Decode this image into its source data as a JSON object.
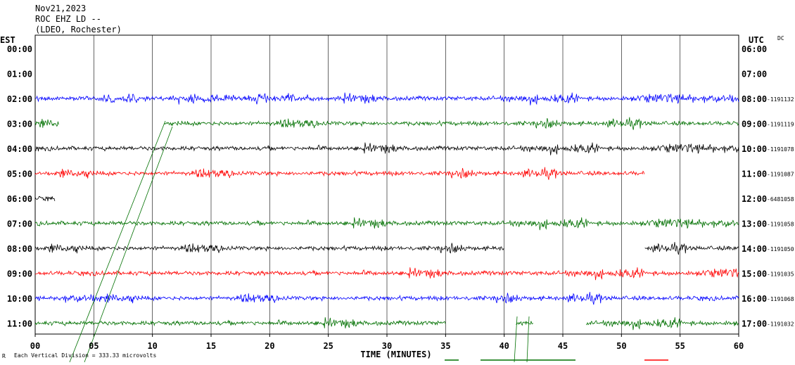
{
  "header": {
    "date": "Nov21,2023",
    "station": "ROC EHZ LD --",
    "network": "(LDEO, Rochester)"
  },
  "left_zone": "EST",
  "right_zone": "UTC",
  "dc_label": "DC",
  "footer": {
    "scale_note": "Each Vertical Division =  333.33 microvolts",
    "corner_mark": "R"
  },
  "chart_data": {
    "type": "line",
    "title": "",
    "xlabel": "TIME (MINUTES)",
    "xlim": [
      0,
      60
    ],
    "x_ticks": [
      "00",
      "05",
      "10",
      "15",
      "20",
      "25",
      "30",
      "35",
      "40",
      "45",
      "50",
      "55",
      "60"
    ],
    "grid": true,
    "trace_colors": [
      "#0000ff",
      "#007000",
      "#000000",
      "#ff0000"
    ],
    "rows": [
      {
        "est": "00:00",
        "utc": "06:00",
        "value": "",
        "color": "#0000ff",
        "segments": []
      },
      {
        "est": "01:00",
        "utc": "07:00",
        "value": "",
        "color": "#007000",
        "segments": []
      },
      {
        "est": "02:00",
        "utc": "08:00",
        "value": "-1191132",
        "color": "#0000ff",
        "segments": [
          [
            0,
            60
          ]
        ]
      },
      {
        "est": "03:00",
        "utc": "09:00",
        "value": "-1191119",
        "color": "#007000",
        "segments": [
          [
            0,
            2
          ],
          [
            11,
            60
          ]
        ]
      },
      {
        "est": "04:00",
        "utc": "10:00",
        "value": "-1191078",
        "color": "#000000",
        "segments": [
          [
            0,
            60
          ]
        ]
      },
      {
        "est": "05:00",
        "utc": "11:00",
        "value": "-1191087",
        "color": "#ff0000",
        "segments": [
          [
            0,
            52
          ]
        ]
      },
      {
        "est": "06:00",
        "utc": "12:00",
        "value": "-6481058",
        "color": "#000000",
        "segments": [
          [
            0,
            1.7
          ]
        ]
      },
      {
        "est": "07:00",
        "utc": "13:00",
        "value": "-1191058",
        "color": "#007000",
        "segments": [
          [
            0,
            60
          ]
        ]
      },
      {
        "est": "08:00",
        "utc": "14:00",
        "value": "-1191050",
        "color": "#000000",
        "segments": [
          [
            0,
            40
          ],
          [
            52,
            60
          ]
        ]
      },
      {
        "est": "09:00",
        "utc": "15:00",
        "value": "-1191035",
        "color": "#ff0000",
        "segments": [
          [
            0,
            60
          ]
        ]
      },
      {
        "est": "10:00",
        "utc": "16:00",
        "value": "-1191068",
        "color": "#0000ff",
        "segments": [
          [
            0,
            60
          ]
        ]
      },
      {
        "est": "11:00",
        "utc": "17:00",
        "value": "-1191032",
        "color": "#007000",
        "segments": [
          [
            0,
            35
          ],
          [
            41,
            42.5
          ],
          [
            47,
            60
          ]
        ]
      }
    ]
  }
}
